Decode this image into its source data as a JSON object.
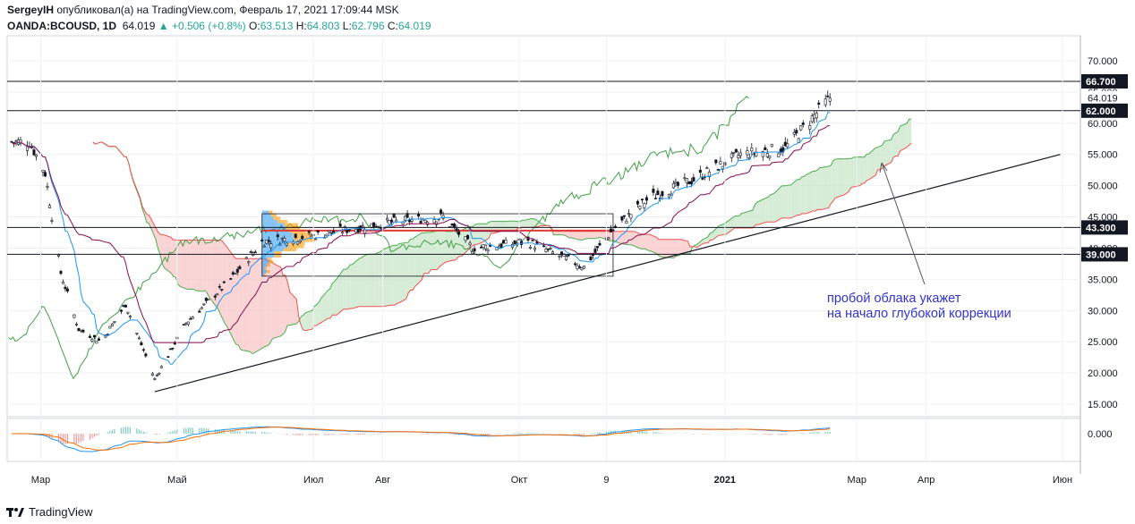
{
  "header": {
    "author": "SergeyIH",
    "published": "опубликовал(а) на TradingView.com, Февраль 17, 2021 17:09:44 MSK",
    "symbol": "OANDA:BCOUSD, 1D",
    "last": "64.019",
    "change": "▲ +0.506 (+0.8%)",
    "o_label": "O:",
    "o_value": "63.513",
    "h_label": "H:",
    "h_value": "64.803",
    "l_label": "L:",
    "l_value": "62.796",
    "c_label": "C:",
    "c_value": "64.019"
  },
  "annotation": {
    "line1": "пробой облака укажет",
    "line2": "на начало глубокой коррекции"
  },
  "footer": {
    "brand": "TradingView"
  },
  "colors": {
    "up": "#26a69a",
    "down": "#131722",
    "tenkan": "#2196f3",
    "kijun": "#880e4f",
    "chikou": "#43a047",
    "span_a": "#4caf50",
    "span_b": "#ef5350",
    "cloud_bull": "#c8e6c9",
    "cloud_bear": "#f8c6c6",
    "annotation": "#3333cc",
    "trend": "#131722",
    "macd": "#2196f3",
    "signal": "#ff6d00",
    "vp_up": "#2196f3",
    "vp_dn": "#ff9800"
  },
  "chart_data": {
    "type": "candlestick",
    "y_axis": {
      "range": [
        13,
        74
      ],
      "ticks": [
        "70.000",
        "65.000",
        "60.000",
        "55.000",
        "50.000",
        "45.000",
        "40.000",
        "35.000",
        "30.000",
        "25.000",
        "20.000",
        "15.000"
      ],
      "tick_values": [
        70,
        65,
        60,
        55,
        50,
        45,
        40,
        35,
        30,
        25,
        20,
        15
      ],
      "price_labels": [
        {
          "value": 66.7,
          "text": "66.700",
          "style": "black"
        },
        {
          "value": 64.019,
          "text": "64.019",
          "style": "plain"
        },
        {
          "value": 62.0,
          "text": "62.000",
          "style": "black"
        },
        {
          "value": 43.3,
          "text": "43.300",
          "style": "black"
        },
        {
          "value": 39.0,
          "text": "39.000",
          "style": "black"
        }
      ]
    },
    "x_axis": {
      "ticks": [
        "Мар",
        "Май",
        "Июл",
        "Авг",
        "Окт",
        "9",
        "2021",
        "Мар",
        "Апр",
        "Июн"
      ]
    },
    "horizontal_levels": [
      66.7,
      62.0,
      43.3,
      39.0
    ],
    "trend_line": {
      "from": {
        "date": "2020-04-21",
        "price": 17.0
      },
      "to": {
        "date": "2021-05-31",
        "price": 55.0
      }
    },
    "close_path": [
      {
        "date": "2020-02-15",
        "close": 57
      },
      {
        "date": "2020-02-25",
        "close": 57
      },
      {
        "date": "2020-03-03",
        "close": 52
      },
      {
        "date": "2020-03-10",
        "close": 36
      },
      {
        "date": "2020-03-18",
        "close": 27
      },
      {
        "date": "2020-03-28",
        "close": 25
      },
      {
        "date": "2020-04-08",
        "close": 31
      },
      {
        "date": "2020-04-21",
        "close": 19
      },
      {
        "date": "2020-05-05",
        "close": 28
      },
      {
        "date": "2020-05-25",
        "close": 35
      },
      {
        "date": "2020-06-08",
        "close": 41
      },
      {
        "date": "2020-07-01",
        "close": 42
      },
      {
        "date": "2020-08-01",
        "close": 44
      },
      {
        "date": "2020-08-28",
        "close": 45
      },
      {
        "date": "2020-09-10",
        "close": 40
      },
      {
        "date": "2020-10-05",
        "close": 41
      },
      {
        "date": "2020-10-30",
        "close": 37
      },
      {
        "date": "2020-11-12",
        "close": 43
      },
      {
        "date": "2020-11-28",
        "close": 48
      },
      {
        "date": "2020-12-18",
        "close": 51
      },
      {
        "date": "2021-01-08",
        "close": 55
      },
      {
        "date": "2021-01-28",
        "close": 56
      },
      {
        "date": "2021-02-17",
        "close": 64.019
      }
    ],
    "indicators": [
      "Ichimoku Cloud",
      "Volume Profile",
      "MACD"
    ],
    "macd_axis": {
      "tick": "0.000",
      "value": 0
    }
  }
}
